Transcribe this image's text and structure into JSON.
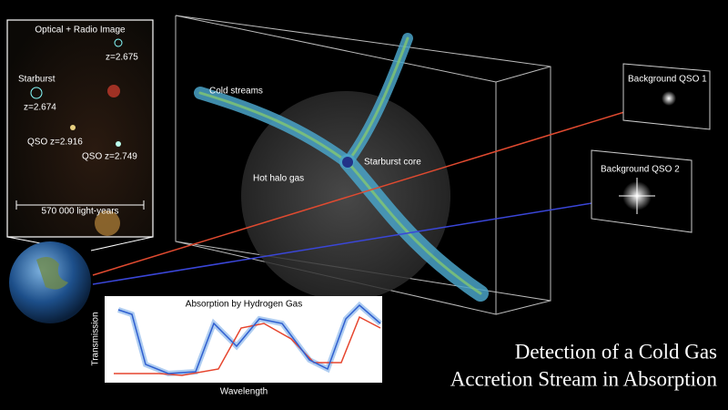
{
  "inset_image": {
    "title": "Optical + Radio Image",
    "labels": [
      "z=2.675",
      "Starburst",
      "z=2.674",
      "QSO z=2.916",
      "QSO z=2.749"
    ],
    "scale_bar": "570 000 light-years"
  },
  "diagram": {
    "streams_label": "Cold streams",
    "core_label": "Starburst core",
    "halo_label": "Hot halo gas"
  },
  "background_sources": [
    "Background QSO 1",
    "Background QSO 2"
  ],
  "spectrum_panel": {
    "title": "Absorption by Hydrogen Gas",
    "y_label": "Transmission",
    "x_label": "Wavelength"
  },
  "caption": {
    "lines": [
      "Detection of a Cold Gas",
      "Accretion Stream in Absorption"
    ]
  }
}
